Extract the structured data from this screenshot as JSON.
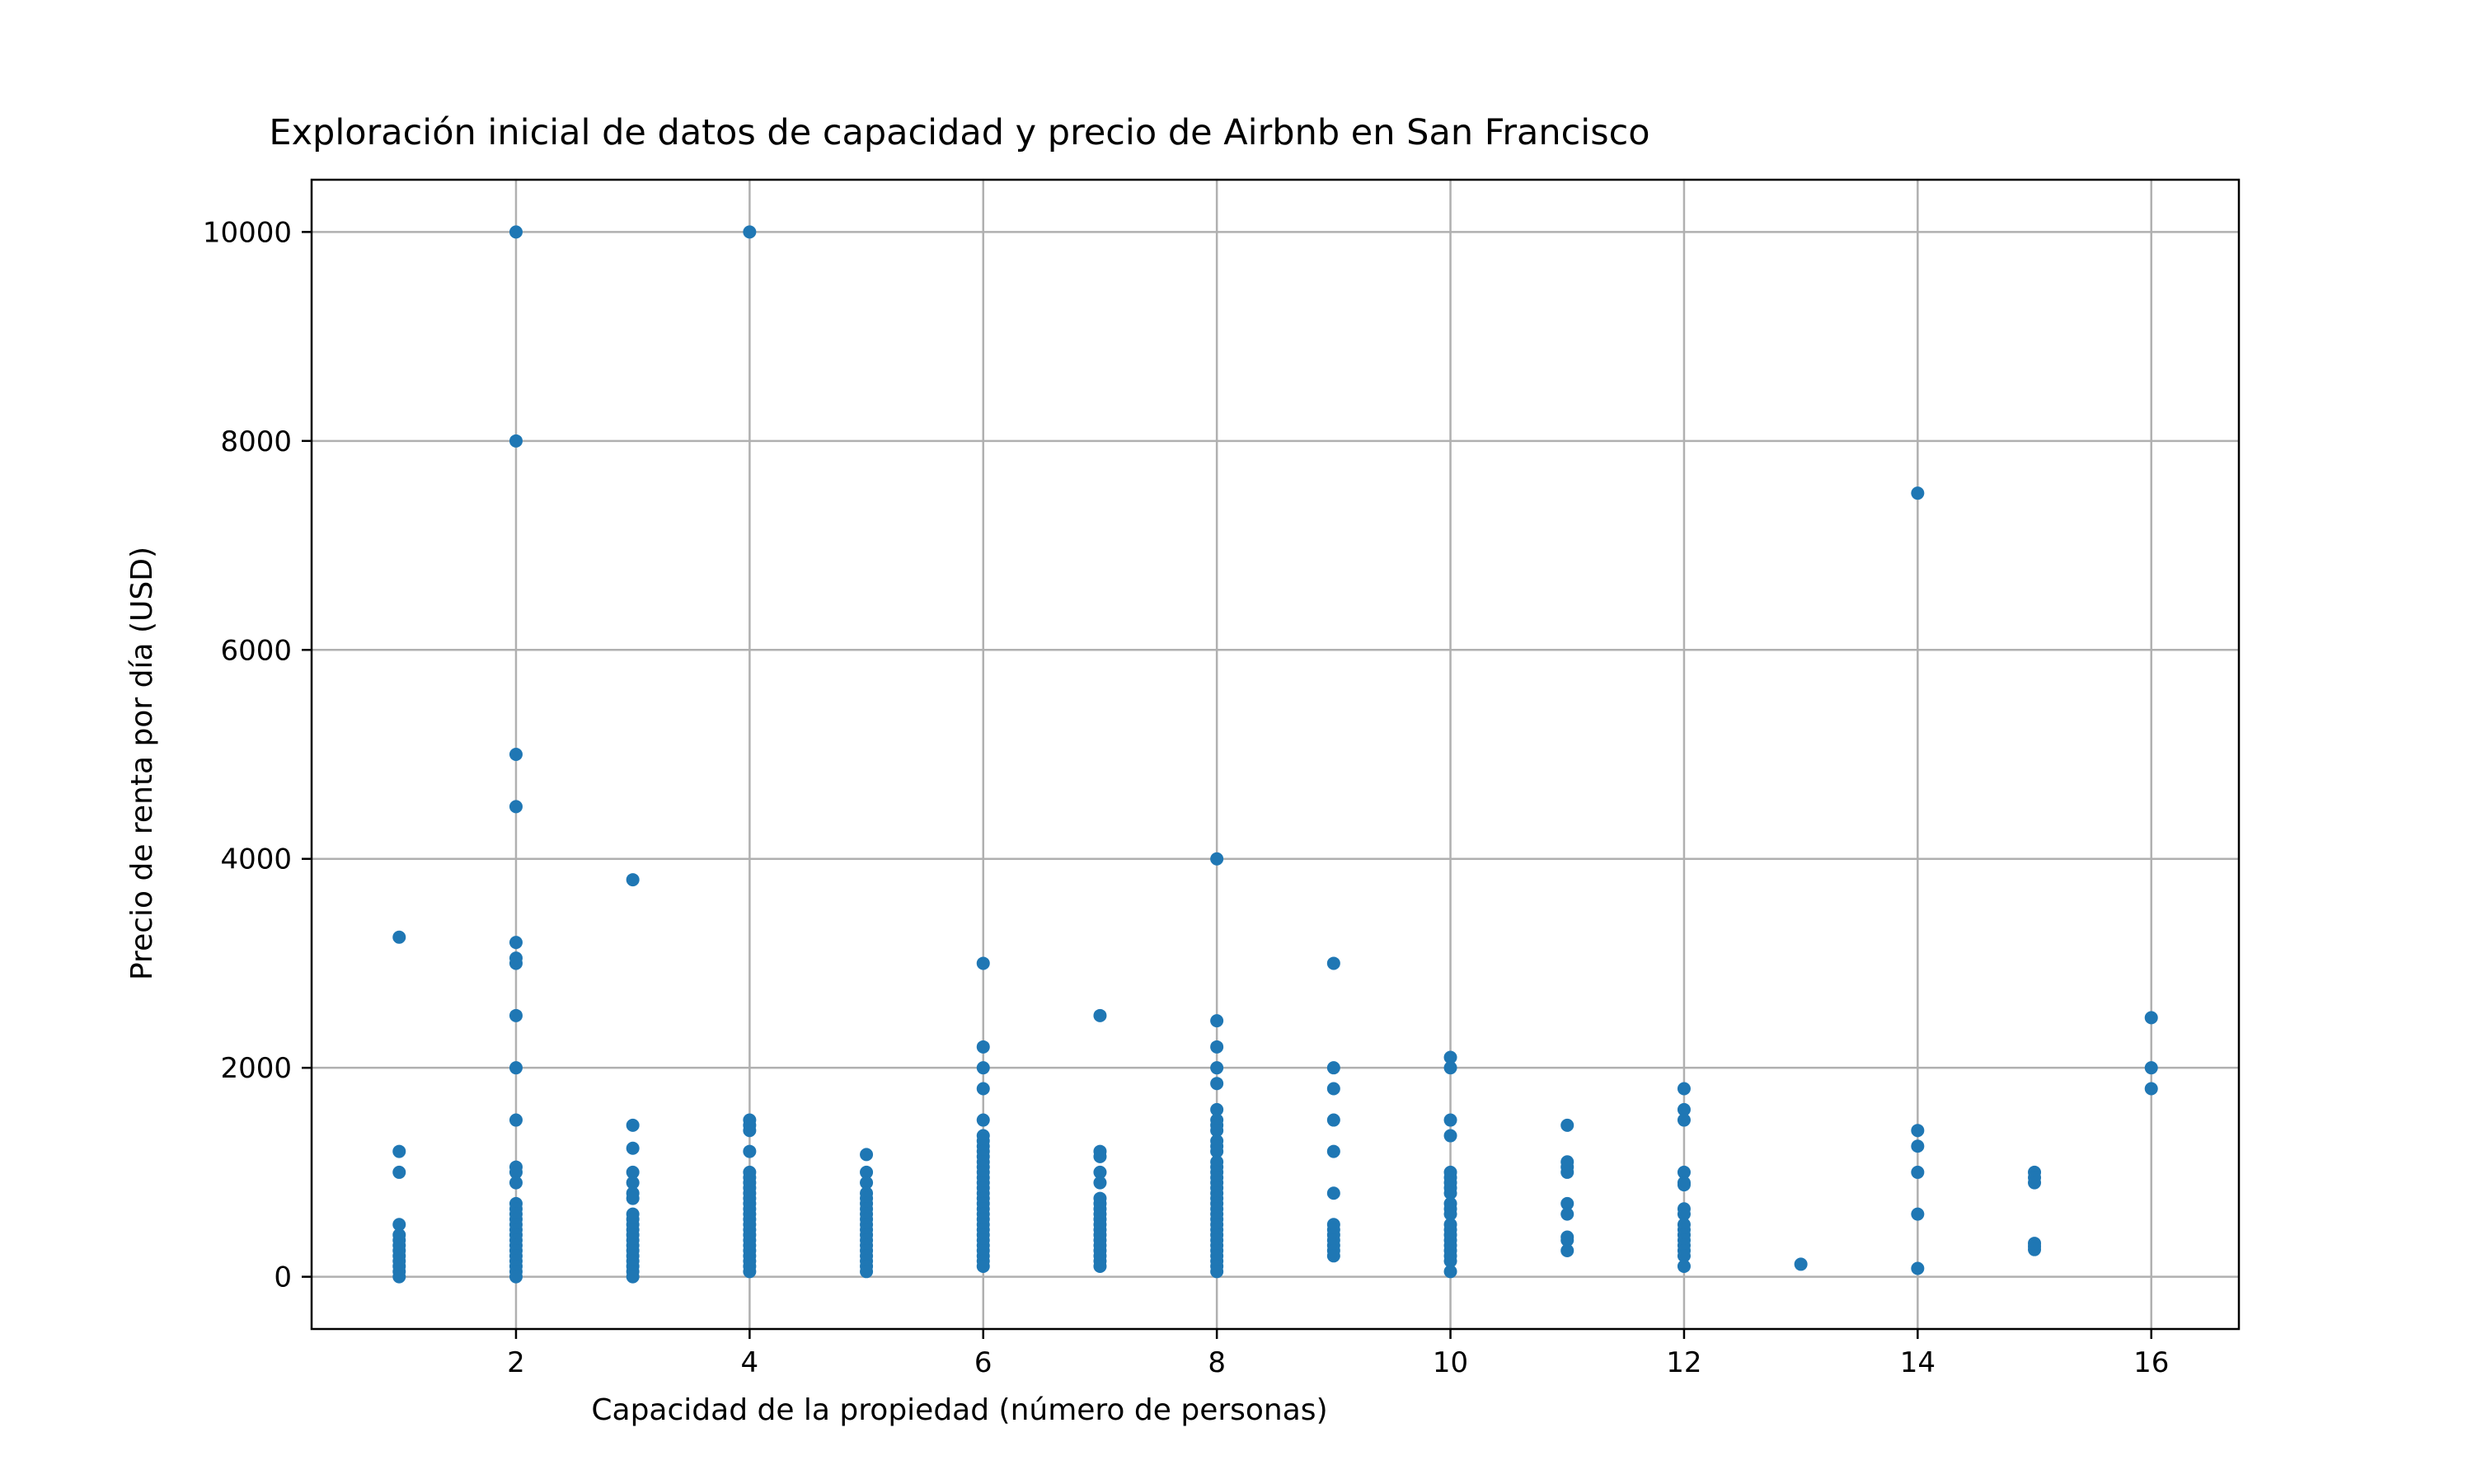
{
  "chart_data": {
    "type": "scatter",
    "title": "Exploración inicial de datos de capacidad y precio de Airbnb en San Francisco",
    "xlabel": "Capacidad de la propiedad (número de personas)",
    "ylabel": "Precio de renta por día (USD)",
    "xlim": [
      0.25,
      16.75
    ],
    "ylim": [
      -500,
      10500
    ],
    "xticks": [
      2,
      4,
      6,
      8,
      10,
      12,
      14,
      16
    ],
    "yticks": [
      0,
      2000,
      4000,
      6000,
      8000,
      10000
    ],
    "xtick_labels": [
      "2",
      "4",
      "6",
      "8",
      "10",
      "12",
      "14",
      "16"
    ],
    "ytick_labels": [
      "0",
      "2000",
      "4000",
      "6000",
      "8000",
      "10000"
    ],
    "grid": true,
    "marker_color": "#1f77b4",
    "points": [
      [
        1,
        3250
      ],
      [
        1,
        1200
      ],
      [
        1,
        1000
      ],
      [
        1,
        500
      ],
      [
        1,
        400
      ],
      [
        1,
        350
      ],
      [
        1,
        300
      ],
      [
        1,
        250
      ],
      [
        1,
        200
      ],
      [
        1,
        150
      ],
      [
        1,
        100
      ],
      [
        1,
        50
      ],
      [
        1,
        0
      ],
      [
        2,
        10000
      ],
      [
        2,
        8000
      ],
      [
        2,
        5000
      ],
      [
        2,
        4500
      ],
      [
        2,
        3200
      ],
      [
        2,
        3050
      ],
      [
        2,
        3000
      ],
      [
        2,
        2500
      ],
      [
        2,
        2000
      ],
      [
        2,
        1500
      ],
      [
        2,
        1050
      ],
      [
        2,
        1000
      ],
      [
        2,
        900
      ],
      [
        2,
        700
      ],
      [
        2,
        650
      ],
      [
        2,
        600
      ],
      [
        2,
        550
      ],
      [
        2,
        500
      ],
      [
        2,
        450
      ],
      [
        2,
        400
      ],
      [
        2,
        350
      ],
      [
        2,
        300
      ],
      [
        2,
        250
      ],
      [
        2,
        200
      ],
      [
        2,
        150
      ],
      [
        2,
        100
      ],
      [
        2,
        50
      ],
      [
        2,
        0
      ],
      [
        3,
        3800
      ],
      [
        3,
        1450
      ],
      [
        3,
        1230
      ],
      [
        3,
        1000
      ],
      [
        3,
        900
      ],
      [
        3,
        800
      ],
      [
        3,
        750
      ],
      [
        3,
        600
      ],
      [
        3,
        550
      ],
      [
        3,
        500
      ],
      [
        3,
        450
      ],
      [
        3,
        400
      ],
      [
        3,
        350
      ],
      [
        3,
        300
      ],
      [
        3,
        250
      ],
      [
        3,
        200
      ],
      [
        3,
        150
      ],
      [
        3,
        100
      ],
      [
        3,
        50
      ],
      [
        3,
        0
      ],
      [
        4,
        10000
      ],
      [
        4,
        1500
      ],
      [
        4,
        1450
      ],
      [
        4,
        1400
      ],
      [
        4,
        1200
      ],
      [
        4,
        1000
      ],
      [
        4,
        950
      ],
      [
        4,
        900
      ],
      [
        4,
        850
      ],
      [
        4,
        800
      ],
      [
        4,
        750
      ],
      [
        4,
        700
      ],
      [
        4,
        650
      ],
      [
        4,
        600
      ],
      [
        4,
        550
      ],
      [
        4,
        500
      ],
      [
        4,
        450
      ],
      [
        4,
        400
      ],
      [
        4,
        350
      ],
      [
        4,
        300
      ],
      [
        4,
        250
      ],
      [
        4,
        200
      ],
      [
        4,
        150
      ],
      [
        4,
        100
      ],
      [
        4,
        50
      ],
      [
        5,
        1170
      ],
      [
        5,
        1000
      ],
      [
        5,
        900
      ],
      [
        5,
        800
      ],
      [
        5,
        750
      ],
      [
        5,
        700
      ],
      [
        5,
        650
      ],
      [
        5,
        600
      ],
      [
        5,
        550
      ],
      [
        5,
        500
      ],
      [
        5,
        450
      ],
      [
        5,
        400
      ],
      [
        5,
        350
      ],
      [
        5,
        300
      ],
      [
        5,
        250
      ],
      [
        5,
        200
      ],
      [
        5,
        150
      ],
      [
        5,
        100
      ],
      [
        5,
        50
      ],
      [
        6,
        3000
      ],
      [
        6,
        2200
      ],
      [
        6,
        2000
      ],
      [
        6,
        1800
      ],
      [
        6,
        1500
      ],
      [
        6,
        1350
      ],
      [
        6,
        1300
      ],
      [
        6,
        1250
      ],
      [
        6,
        1200
      ],
      [
        6,
        1150
      ],
      [
        6,
        1100
      ],
      [
        6,
        1050
      ],
      [
        6,
        1000
      ],
      [
        6,
        950
      ],
      [
        6,
        900
      ],
      [
        6,
        850
      ],
      [
        6,
        800
      ],
      [
        6,
        750
      ],
      [
        6,
        700
      ],
      [
        6,
        650
      ],
      [
        6,
        600
      ],
      [
        6,
        550
      ],
      [
        6,
        500
      ],
      [
        6,
        450
      ],
      [
        6,
        400
      ],
      [
        6,
        350
      ],
      [
        6,
        300
      ],
      [
        6,
        250
      ],
      [
        6,
        200
      ],
      [
        6,
        150
      ],
      [
        6,
        100
      ],
      [
        7,
        2500
      ],
      [
        7,
        1200
      ],
      [
        7,
        1150
      ],
      [
        7,
        1000
      ],
      [
        7,
        900
      ],
      [
        7,
        750
      ],
      [
        7,
        700
      ],
      [
        7,
        650
      ],
      [
        7,
        600
      ],
      [
        7,
        550
      ],
      [
        7,
        500
      ],
      [
        7,
        450
      ],
      [
        7,
        400
      ],
      [
        7,
        350
      ],
      [
        7,
        300
      ],
      [
        7,
        250
      ],
      [
        7,
        200
      ],
      [
        7,
        150
      ],
      [
        7,
        100
      ],
      [
        8,
        4000
      ],
      [
        8,
        2450
      ],
      [
        8,
        2200
      ],
      [
        8,
        2000
      ],
      [
        8,
        1850
      ],
      [
        8,
        1600
      ],
      [
        8,
        1500
      ],
      [
        8,
        1450
      ],
      [
        8,
        1400
      ],
      [
        8,
        1300
      ],
      [
        8,
        1250
      ],
      [
        8,
        1200
      ],
      [
        8,
        1100
      ],
      [
        8,
        1050
      ],
      [
        8,
        1000
      ],
      [
        8,
        950
      ],
      [
        8,
        900
      ],
      [
        8,
        850
      ],
      [
        8,
        800
      ],
      [
        8,
        750
      ],
      [
        8,
        700
      ],
      [
        8,
        650
      ],
      [
        8,
        600
      ],
      [
        8,
        550
      ],
      [
        8,
        500
      ],
      [
        8,
        450
      ],
      [
        8,
        400
      ],
      [
        8,
        350
      ],
      [
        8,
        300
      ],
      [
        8,
        250
      ],
      [
        8,
        200
      ],
      [
        8,
        150
      ],
      [
        8,
        100
      ],
      [
        8,
        50
      ],
      [
        9,
        3000
      ],
      [
        9,
        2000
      ],
      [
        9,
        1800
      ],
      [
        9,
        1500
      ],
      [
        9,
        1200
      ],
      [
        9,
        800
      ],
      [
        9,
        500
      ],
      [
        9,
        450
      ],
      [
        9,
        400
      ],
      [
        9,
        350
      ],
      [
        9,
        300
      ],
      [
        9,
        250
      ],
      [
        9,
        200
      ],
      [
        10,
        2100
      ],
      [
        10,
        2000
      ],
      [
        10,
        1500
      ],
      [
        10,
        1350
      ],
      [
        10,
        1000
      ],
      [
        10,
        950
      ],
      [
        10,
        900
      ],
      [
        10,
        850
      ],
      [
        10,
        800
      ],
      [
        10,
        700
      ],
      [
        10,
        650
      ],
      [
        10,
        600
      ],
      [
        10,
        500
      ],
      [
        10,
        450
      ],
      [
        10,
        400
      ],
      [
        10,
        350
      ],
      [
        10,
        300
      ],
      [
        10,
        250
      ],
      [
        10,
        200
      ],
      [
        10,
        150
      ],
      [
        10,
        50
      ],
      [
        11,
        1450
      ],
      [
        11,
        1100
      ],
      [
        11,
        1050
      ],
      [
        11,
        1000
      ],
      [
        11,
        700
      ],
      [
        11,
        600
      ],
      [
        11,
        380
      ],
      [
        11,
        350
      ],
      [
        11,
        250
      ],
      [
        12,
        1800
      ],
      [
        12,
        1600
      ],
      [
        12,
        1500
      ],
      [
        12,
        1000
      ],
      [
        12,
        900
      ],
      [
        12,
        880
      ],
      [
        12,
        650
      ],
      [
        12,
        600
      ],
      [
        12,
        500
      ],
      [
        12,
        450
      ],
      [
        12,
        400
      ],
      [
        12,
        350
      ],
      [
        12,
        300
      ],
      [
        12,
        250
      ],
      [
        12,
        200
      ],
      [
        12,
        100
      ],
      [
        13,
        120
      ],
      [
        14,
        7500
      ],
      [
        14,
        1400
      ],
      [
        14,
        1250
      ],
      [
        14,
        1000
      ],
      [
        14,
        600
      ],
      [
        14,
        80
      ],
      [
        15,
        1000
      ],
      [
        15,
        950
      ],
      [
        15,
        900
      ],
      [
        15,
        320
      ],
      [
        15,
        290
      ],
      [
        15,
        260
      ],
      [
        16,
        2480
      ],
      [
        16,
        2000
      ],
      [
        16,
        1800
      ]
    ]
  }
}
